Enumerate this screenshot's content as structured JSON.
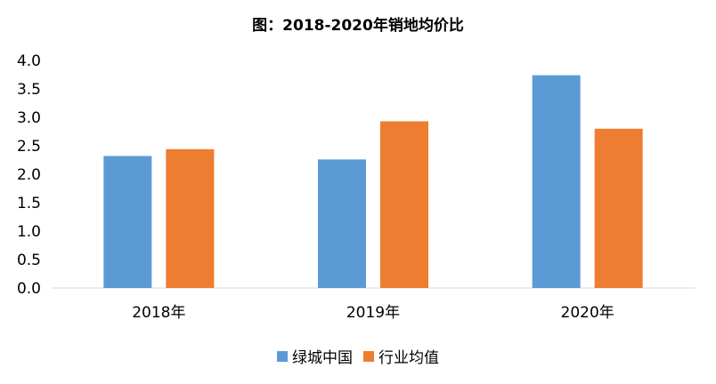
{
  "chart_data": {
    "type": "bar",
    "title": "图：2018-2020年销地均价比",
    "categories": [
      "2018年",
      "2019年",
      "2020年"
    ],
    "series": [
      {
        "name": "绿城中国",
        "values": [
          2.32,
          2.26,
          3.74
        ],
        "color": "#5B9BD5"
      },
      {
        "name": "行业均值",
        "values": [
          2.44,
          2.93,
          2.8
        ],
        "color": "#ED7D31"
      }
    ],
    "ylim": [
      0,
      4.0
    ],
    "yticks": [
      "0.0",
      "0.5",
      "1.0",
      "1.5",
      "2.0",
      "2.5",
      "3.0",
      "3.5",
      "4.0"
    ],
    "grid": false,
    "legend_position": "bottom"
  }
}
